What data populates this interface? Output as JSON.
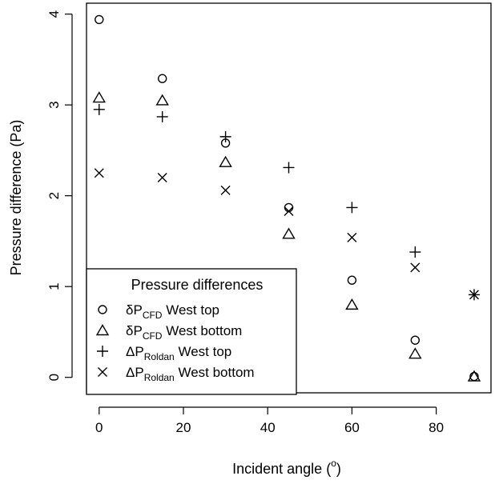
{
  "chart_data": {
    "type": "scatter",
    "xlabel": "Incident angle (",
    "xlabel_degree": "o",
    "xlabel_close": ")",
    "ylabel": "Pressure difference (Pa)",
    "xlim": [
      -3,
      93
    ],
    "ylim": [
      -0.17,
      4.12
    ],
    "x_ticks": [
      0,
      20,
      40,
      60,
      80
    ],
    "y_ticks": [
      0,
      1,
      2,
      3,
      4
    ],
    "x_tick_labels": [
      "0",
      "20",
      "40",
      "60",
      "80"
    ],
    "y_tick_labels": [
      "0",
      "1",
      "2",
      "3",
      "4"
    ],
    "grid": false,
    "legend": {
      "title": "Pressure differences",
      "position": "bottom-left",
      "entries": [
        {
          "symbol": "circle",
          "prefix": "δP",
          "subscript": "CFD",
          "suffix": " West top"
        },
        {
          "symbol": "triangle",
          "prefix": "δP",
          "subscript": "CFD",
          "suffix": " West bottom"
        },
        {
          "symbol": "plus",
          "prefix": "ΔP",
          "subscript": "Roldan",
          "suffix": " West top"
        },
        {
          "symbol": "cross",
          "prefix": "ΔP",
          "subscript": "Roldan",
          "suffix": " West bottom"
        }
      ]
    },
    "series": [
      {
        "symbol": "circle",
        "x": [
          0,
          15,
          30,
          45,
          60,
          75,
          89
        ],
        "y": [
          3.94,
          3.29,
          2.58,
          1.87,
          1.07,
          0.41,
          0.01
        ]
      },
      {
        "symbol": "triangle",
        "x": [
          0,
          15,
          30,
          45,
          60,
          75,
          89
        ],
        "y": [
          3.08,
          3.05,
          2.37,
          1.58,
          0.8,
          0.26,
          0.01
        ]
      },
      {
        "symbol": "plus",
        "x": [
          0,
          15,
          30,
          45,
          60,
          75,
          89
        ],
        "y": [
          2.95,
          2.87,
          2.65,
          2.31,
          1.87,
          1.38,
          0.91
        ]
      },
      {
        "symbol": "cross",
        "x": [
          0,
          15,
          30,
          45,
          60,
          75,
          89
        ],
        "y": [
          2.25,
          2.2,
          2.06,
          1.83,
          1.54,
          1.21,
          0.91
        ]
      }
    ]
  }
}
